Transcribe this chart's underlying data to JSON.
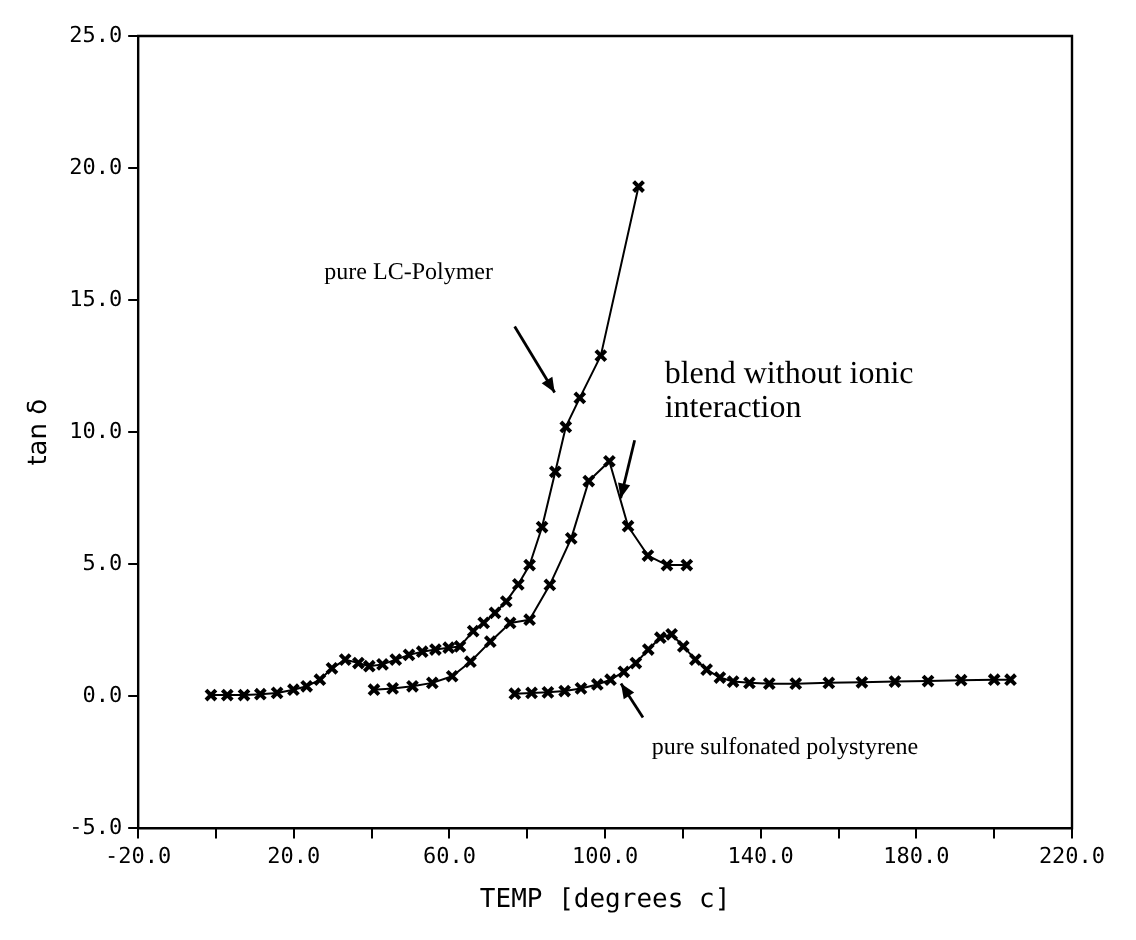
{
  "chart_data": {
    "type": "line",
    "xlabel": "TEMP [degrees c]",
    "ylabel": "tan δ",
    "xlim": [
      -20,
      220
    ],
    "ylim": [
      -5,
      25
    ],
    "xticks": [
      {
        "value": -20,
        "label": "-20.0"
      },
      {
        "value": 0,
        "label": null
      },
      {
        "value": 20,
        "label": "20.0"
      },
      {
        "value": 40,
        "label": null
      },
      {
        "value": 60,
        "label": "60.0"
      },
      {
        "value": 80,
        "label": null
      },
      {
        "value": 100,
        "label": "100.0"
      },
      {
        "value": 120,
        "label": null
      },
      {
        "value": 140,
        "label": "140.0"
      },
      {
        "value": 160,
        "label": null
      },
      {
        "value": 180,
        "label": "180.0"
      },
      {
        "value": 200,
        "label": null
      },
      {
        "value": 220,
        "label": "220.0"
      }
    ],
    "yticks": [
      {
        "value": -5,
        "label": "-5.0"
      },
      {
        "value": 0,
        "label": "0.0"
      },
      {
        "value": 5,
        "label": "5.0"
      },
      {
        "value": 10,
        "label": "10.0"
      },
      {
        "value": 15,
        "label": "15.0"
      },
      {
        "value": 20,
        "label": "20.0"
      },
      {
        "value": 25,
        "label": "25.0"
      }
    ],
    "marker": "cross",
    "line_style": "solid",
    "grid": false,
    "legend": false,
    "series": [
      {
        "color": "#000000",
        "x": [
          -1.3,
          2.9,
          7.2,
          11.4,
          15.7,
          19.9,
          23.3,
          26.7,
          29.8,
          33.2,
          36.6,
          39.4,
          42.8,
          46.2,
          49.6,
          53.0,
          56.4,
          59.8,
          62.7,
          66.1,
          68.8,
          71.7,
          74.6,
          77.7,
          80.6,
          83.8,
          87.2,
          89.9,
          93.5,
          98.9,
          108.6
        ],
        "values": [
          0.05,
          0.05,
          0.05,
          0.08,
          0.13,
          0.25,
          0.38,
          0.63,
          1.06,
          1.39,
          1.26,
          1.14,
          1.21,
          1.39,
          1.57,
          1.69,
          1.77,
          1.84,
          1.89,
          2.47,
          2.78,
          3.16,
          3.59,
          4.24,
          4.97,
          6.41,
          8.5,
          10.2,
          11.3,
          12.9,
          19.3
        ]
      },
      {
        "color": "#000000",
        "x": [
          40.6,
          45.4,
          50.5,
          55.6,
          60.7,
          65.4,
          70.5,
          75.6,
          80.6,
          85.8,
          91.3,
          95.8,
          101.1,
          105.9,
          111.0,
          115.9,
          121.0
        ],
        "values": [
          0.25,
          0.3,
          0.38,
          0.51,
          0.76,
          1.31,
          2.07,
          2.78,
          2.9,
          4.22,
          5.98,
          8.15,
          8.9,
          6.44,
          5.33,
          4.97,
          4.97
        ]
      },
      {
        "color": "#000000",
        "x": [
          76.8,
          81.1,
          85.3,
          89.6,
          93.8,
          98.0,
          101.4,
          104.8,
          107.9,
          111.1,
          114.2,
          117.1,
          120.1,
          123.2,
          126.1,
          129.5,
          132.9,
          137.1,
          142.2,
          149.0,
          157.5,
          166.0,
          174.5,
          183.0,
          191.5,
          200.0,
          204.2
        ],
        "values": [
          0.1,
          0.13,
          0.15,
          0.2,
          0.3,
          0.45,
          0.63,
          0.93,
          1.26,
          1.77,
          2.22,
          2.35,
          1.89,
          1.39,
          1.01,
          0.71,
          0.56,
          0.51,
          0.48,
          0.48,
          0.51,
          0.53,
          0.56,
          0.58,
          0.61,
          0.63,
          0.63
        ]
      }
    ],
    "annotations": [
      "pure LC-Polymer",
      {
        "text": "blend without ionic interaction",
        "x": 104,
        "y": 7.5
      },
      "pure sulfonated polystyrene"
    ]
  }
}
